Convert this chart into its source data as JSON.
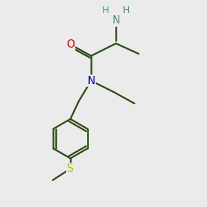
{
  "bg_color": "#ebebeb",
  "bond_color": "#2d5016",
  "bond_width": 1.8,
  "atom_colors": {
    "N_amide": "#0000ee",
    "O": "#dd0000",
    "S": "#bbbb00",
    "NH2_N": "#4a9080",
    "NH2_H": "#4a9080"
  },
  "figsize": [
    3.0,
    3.0
  ],
  "dpi": 100,
  "xlim": [
    0,
    10
  ],
  "ylim": [
    0,
    10
  ]
}
